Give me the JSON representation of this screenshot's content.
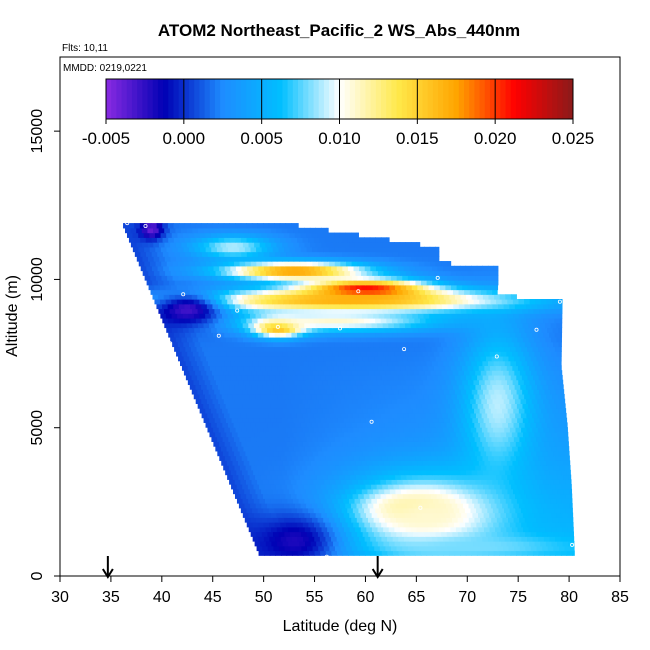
{
  "chart_data": {
    "type": "heatmap",
    "title": "ATOM2 Northeast_Pacific_2 WS_Abs_440nm",
    "note_flights": "Flts: 10,11",
    "note_dates": "MMDD: 0219,0221",
    "xlabel": "Latitude (deg N)",
    "ylabel": "Altitude (m)",
    "xlim": [
      30,
      85
    ],
    "ylim": [
      0,
      17500
    ],
    "x_ticks": [
      30,
      35,
      40,
      45,
      50,
      55,
      60,
      65,
      70,
      75,
      80,
      85
    ],
    "y_ticks": [
      0,
      5000,
      10000,
      15000
    ],
    "x_tick_labels": [
      "30",
      "35",
      "40",
      "45",
      "50",
      "55",
      "60",
      "65",
      "70",
      "75",
      "80",
      "85"
    ],
    "y_tick_labels": [
      "0",
      "5000",
      "10000",
      "15000"
    ],
    "colorbar": {
      "min": -0.005,
      "max": 0.025,
      "ticks": [
        -0.005,
        0.0,
        0.005,
        0.01,
        0.015,
        0.02,
        0.025
      ],
      "tick_labels": [
        "-0.005",
        "0.000",
        "0.005",
        "0.010",
        "0.015",
        "0.020",
        "0.025"
      ],
      "colors": [
        "#8a2be2",
        "#0000b4",
        "#1e8cff",
        "#00bfff",
        "#ffffff",
        "#ffe84a",
        "#ffa500",
        "#ff0000",
        "#8b1a1a"
      ]
    },
    "arrows_latitude": [
      34.7,
      61.2
    ],
    "base_value": 0.002,
    "boundary": {
      "bottom_alt": 700,
      "top_alt": 11900,
      "left_lat_at_bottom": 49.5,
      "left_lat_at_top": 36.0,
      "right_lat": [
        [
          700,
          80.5
        ],
        [
          1500,
          80.4
        ],
        [
          3000,
          80.2
        ],
        [
          5000,
          79.8
        ],
        [
          7000,
          79.2
        ],
        [
          9200,
          79.3
        ],
        [
          9400,
          72.9
        ],
        [
          9800,
          73.0
        ],
        [
          10300,
          73.0
        ],
        [
          10500,
          67.2
        ],
        [
          11000,
          67.2
        ],
        [
          11500,
          57.8
        ],
        [
          12000,
          48.6
        ]
      ]
    },
    "features": [
      {
        "lat": 60.0,
        "alt": 9650,
        "value": 0.024,
        "dlat": 6.0,
        "dalt": 350
      },
      {
        "lat": 58.0,
        "alt": 9300,
        "value": 0.017,
        "dlat": 16.0,
        "dalt": 400
      },
      {
        "lat": 53.0,
        "alt": 10300,
        "value": 0.018,
        "dlat": 7.0,
        "dalt": 300
      },
      {
        "lat": 51.5,
        "alt": 8400,
        "value": 0.02,
        "dlat": 2.5,
        "dalt": 300
      },
      {
        "lat": 57.0,
        "alt": 8600,
        "value": 0.011,
        "dlat": 10.0,
        "dalt": 350
      },
      {
        "lat": 47.0,
        "alt": 11100,
        "value": 0.009,
        "dlat": 4.0,
        "dalt": 400
      },
      {
        "lat": 39.0,
        "alt": 11700,
        "value": -0.004,
        "dlat": 1.2,
        "dalt": 350
      },
      {
        "lat": 42.5,
        "alt": 9000,
        "value": -0.003,
        "dlat": 3.5,
        "dalt": 600
      },
      {
        "lat": 65.0,
        "alt": 2300,
        "value": 0.016,
        "dlat": 4.5,
        "dalt": 600
      },
      {
        "lat": 66.0,
        "alt": 2000,
        "value": 0.011,
        "dlat": 8.0,
        "dalt": 1500
      },
      {
        "lat": 73.0,
        "alt": 5800,
        "value": 0.009,
        "dlat": 3.5,
        "dalt": 2500
      },
      {
        "lat": 71.0,
        "alt": 1000,
        "value": 0.008,
        "dlat": 9.0,
        "dalt": 400
      },
      {
        "lat": 53.0,
        "alt": 1200,
        "value": -0.002,
        "dlat": 4.0,
        "dalt": 900
      }
    ],
    "sample_points": [
      [
        36.6,
        11900
      ],
      [
        38.4,
        11800
      ],
      [
        35.9,
        10800
      ],
      [
        42.1,
        9500
      ],
      [
        47.4,
        8950
      ],
      [
        45.6,
        8100
      ],
      [
        40.8,
        7850
      ],
      [
        51.4,
        8400
      ],
      [
        57.5,
        8350
      ],
      [
        59.3,
        9600
      ],
      [
        67.1,
        10050
      ],
      [
        79.1,
        9250
      ],
      [
        76.8,
        8300
      ],
      [
        63.8,
        7650
      ],
      [
        72.9,
        7400
      ],
      [
        60.6,
        5200
      ],
      [
        65.4,
        2300
      ],
      [
        56.2,
        650
      ],
      [
        80.3,
        1050
      ],
      [
        50.0,
        600
      ]
    ]
  }
}
